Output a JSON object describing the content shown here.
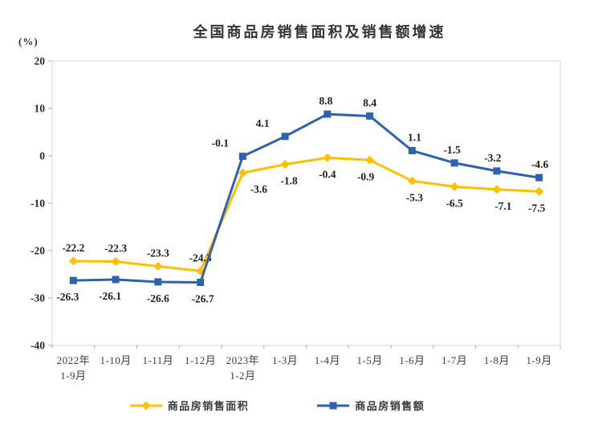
{
  "chart_data": {
    "type": "line",
    "title": "全国商品房销售面积及销售额增速",
    "unit_label": "(%)",
    "xlabel": "",
    "ylabel": "(%)",
    "ylim": [
      -40,
      20
    ],
    "yticks": [
      20,
      10,
      0,
      -10,
      -20,
      -30,
      -40
    ],
    "grid": false,
    "legend_position": "bottom",
    "categories": [
      "2022年\n1-9月",
      "1-10月",
      "1-11月",
      "1-12月",
      "2023年\n1-2月",
      "1-3月",
      "1-4月",
      "1-5月",
      "1-6月",
      "1-7月",
      "1-8月",
      "1-9月"
    ],
    "series": [
      {
        "name": "商品房销售面积",
        "color": "#FFC000",
        "marker": "diamond",
        "values": [
          -22.2,
          -22.3,
          -23.3,
          -24.3,
          -3.6,
          -1.8,
          -0.4,
          -0.9,
          -5.3,
          -6.5,
          -7.1,
          -7.5
        ],
        "label_side": [
          "above",
          "above",
          "above",
          "above",
          "below",
          "below",
          "below",
          "below",
          "below",
          "below",
          "below",
          "below"
        ],
        "label_dx": [
          0,
          0,
          0,
          0,
          20,
          5,
          0,
          -5,
          3,
          0,
          8,
          -3
        ]
      },
      {
        "name": "商品房销售额",
        "color": "#2E62B1",
        "marker": "square",
        "values": [
          -26.3,
          -26.1,
          -26.6,
          -26.7,
          -0.1,
          4.1,
          8.8,
          8.4,
          1.1,
          -1.5,
          -3.2,
          -4.6
        ],
        "label_side": [
          "below",
          "below",
          "below",
          "below",
          "above",
          "above",
          "above",
          "above",
          "above",
          "above",
          "above",
          "above"
        ],
        "label_dx": [
          -7,
          -7,
          0,
          3,
          -28,
          -28,
          -2,
          0,
          3,
          -3,
          -5,
          1
        ]
      }
    ]
  }
}
